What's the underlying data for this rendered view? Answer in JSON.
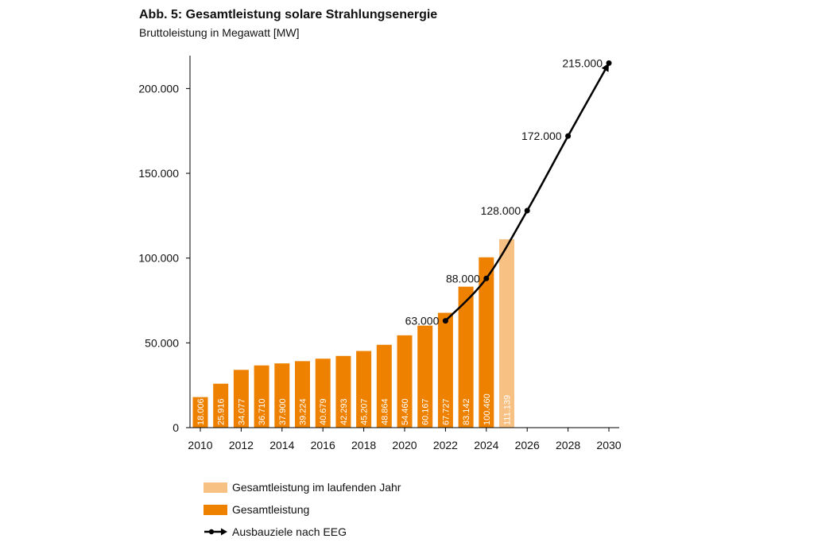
{
  "title": "Abb. 5: Gesamtleistung solare Strahlungsenergie",
  "subtitle": "Bruttoleistung in Megawatt [MW]",
  "colors": {
    "bar": "#ee8200",
    "bar_current": "#f7c183",
    "line": "#000000"
  },
  "chart_data": {
    "type": "bar",
    "title": "Abb. 5: Gesamtleistung solare Strahlungsenergie",
    "subtitle": "Bruttoleistung in Megawatt [MW]",
    "xlim": [
      2010,
      2030
    ],
    "ylim": [
      0,
      220000
    ],
    "x_ticks": [
      2010,
      2012,
      2014,
      2016,
      2018,
      2020,
      2022,
      2024,
      2026,
      2028,
      2030
    ],
    "y_ticks": [
      0,
      50000,
      100000,
      150000,
      200000
    ],
    "y_tick_labels": [
      "0",
      "50.000",
      "100.000",
      "150.000",
      "200.000"
    ],
    "x_tick_labels": [
      "2010",
      "2012",
      "2014",
      "2016",
      "2018",
      "2020",
      "2022",
      "2024",
      "2026",
      "2028",
      "2030"
    ],
    "legend": "bottom",
    "grid": false,
    "series": [
      {
        "name": "Gesamtleistung",
        "type": "bar",
        "color": "#ee8200",
        "x": [
          2010,
          2011,
          2012,
          2013,
          2014,
          2015,
          2016,
          2017,
          2018,
          2019,
          2020,
          2021,
          2022,
          2023,
          2024
        ],
        "values": [
          18006,
          25916,
          34077,
          36710,
          37900,
          39224,
          40679,
          42293,
          45207,
          48864,
          54460,
          60167,
          67727,
          83142,
          100460
        ],
        "labels": [
          "18.006",
          "25.916",
          "34.077",
          "36.710",
          "37.900",
          "39.224",
          "40.679",
          "42.293",
          "45.207",
          "48.864",
          "54.460",
          "60.167",
          "67.727",
          "83.142",
          "100.460"
        ]
      },
      {
        "name": "Gesamtleistung im laufenden Jahr",
        "type": "bar",
        "color": "#f7c183",
        "x": [
          2025
        ],
        "values": [
          111139
        ],
        "labels": [
          "111.139"
        ]
      },
      {
        "name": "Ausbauziele nach EEG",
        "type": "line",
        "color": "#000000",
        "x": [
          2022,
          2024,
          2026,
          2028,
          2030
        ],
        "values": [
          63000,
          88000,
          128000,
          172000,
          215000
        ],
        "labels": [
          "63.000",
          "88.000",
          "128.000",
          "172.000",
          "215.000"
        ]
      }
    ]
  }
}
